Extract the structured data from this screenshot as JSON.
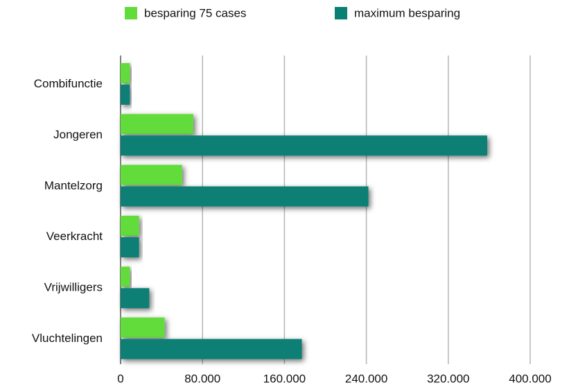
{
  "chart_data": {
    "type": "bar",
    "orientation": "horizontal",
    "categories": [
      "Combifunctie",
      "Jongeren",
      "Mantelzorg",
      "Veerkracht",
      "Vrijwilligers",
      "Vluchtelingen"
    ],
    "series": [
      {
        "name": "besparing 75 cases",
        "color": "#62dc3a",
        "values": [
          9000,
          71000,
          60000,
          18000,
          9000,
          43000
        ]
      },
      {
        "name": "maximum besparing",
        "color": "#0a7f74",
        "values": [
          9000,
          358000,
          242000,
          18000,
          28000,
          177000
        ]
      }
    ],
    "xlim": [
      0,
      400000
    ],
    "xticks": [
      0,
      {
        "value": 80000,
        "label": "80.000"
      },
      {
        "value": 160000,
        "label": "160.000"
      },
      {
        "value": 240000,
        "label": "240.000"
      },
      {
        "value": 320000,
        "label": "320.000"
      },
      {
        "value": 400000,
        "label": "400.000"
      }
    ],
    "grid": true,
    "legend": "top"
  }
}
